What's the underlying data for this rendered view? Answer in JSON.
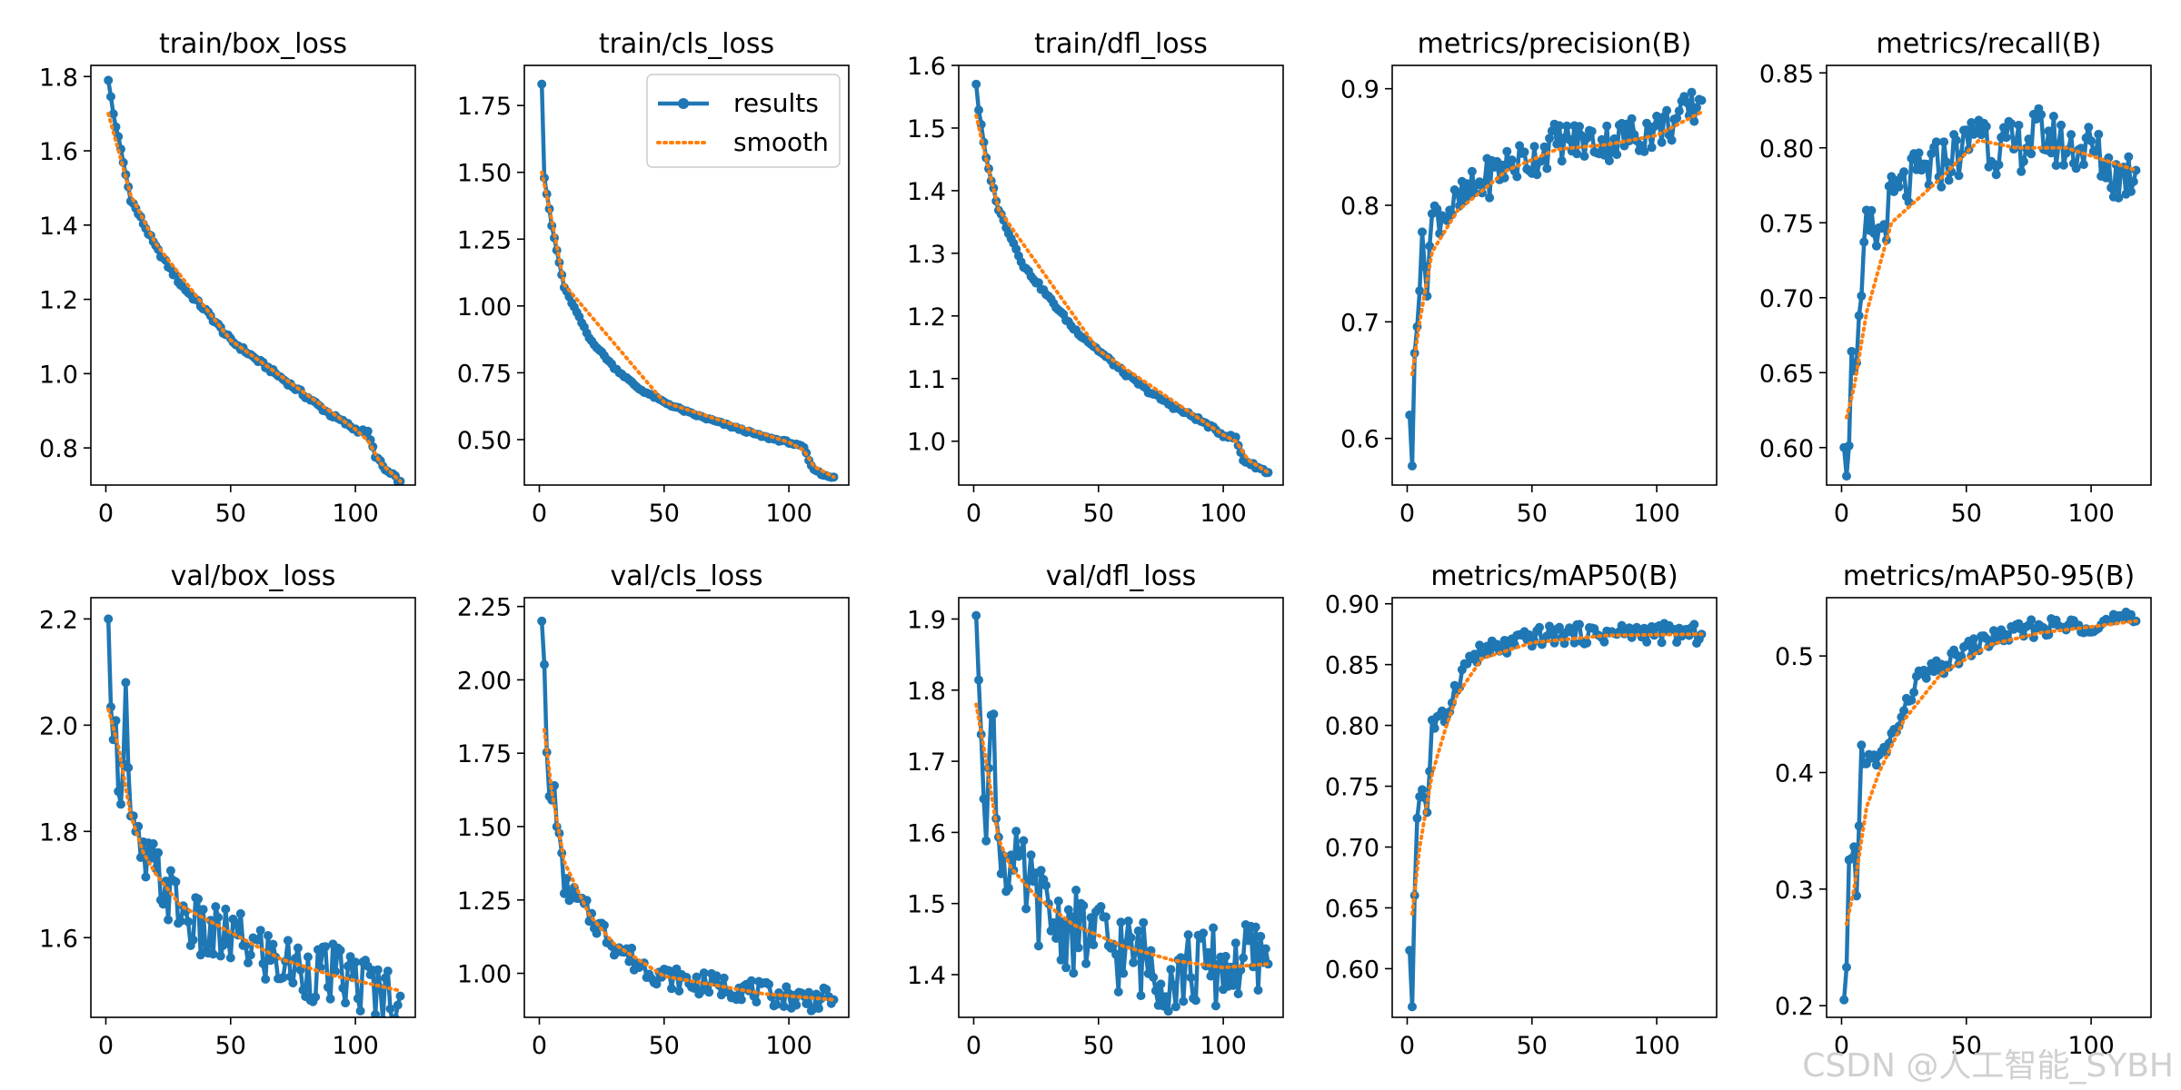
{
  "legend": {
    "results_label": "results",
    "smooth_label": "smooth"
  },
  "colors": {
    "results": "#1f77b4",
    "smooth": "#ff7f0e",
    "axes": "#000000"
  },
  "watermark": "CSDN @人工智能_SYBH",
  "chart_data": [
    {
      "type": "line",
      "title": "train/box_loss",
      "xlabel": "",
      "ylabel": "",
      "grid": false,
      "xlim": [
        -6,
        124
      ],
      "xticks": [
        0,
        50,
        100
      ],
      "ylim": [
        0.7,
        1.83
      ],
      "yticks": [
        0.8,
        1.0,
        1.2,
        1.4,
        1.6,
        1.8
      ],
      "ytick_labels": [
        "0.8",
        "1.0",
        "1.2",
        "1.4",
        "1.6",
        "1.8"
      ],
      "n": 118,
      "points": [
        [
          1,
          1.79
        ],
        [
          3,
          1.7
        ],
        [
          10,
          1.47
        ],
        [
          20,
          1.34
        ],
        [
          30,
          1.24
        ],
        [
          40,
          1.17
        ],
        [
          50,
          1.09
        ],
        [
          60,
          1.04
        ],
        [
          70,
          0.99
        ],
        [
          80,
          0.94
        ],
        [
          90,
          0.89
        ],
        [
          100,
          0.85
        ],
        [
          105,
          0.84
        ],
        [
          108,
          0.78
        ],
        [
          112,
          0.74
        ],
        [
          118,
          0.71
        ]
      ],
      "noise": 0.006,
      "smooth_points": [
        [
          1,
          1.7
        ],
        [
          10,
          1.48
        ],
        [
          20,
          1.35
        ],
        [
          50,
          1.09
        ],
        [
          100,
          0.85
        ],
        [
          105,
          0.82
        ],
        [
          110,
          0.76
        ],
        [
          118,
          0.71
        ]
      ]
    },
    {
      "type": "line",
      "title": "train/cls_loss",
      "xlabel": "",
      "ylabel": "",
      "grid": false,
      "xlim": [
        -6,
        124
      ],
      "xticks": [
        0,
        50,
        100
      ],
      "ylim": [
        0.33,
        1.9
      ],
      "yticks": [
        0.5,
        0.75,
        1.0,
        1.25,
        1.5,
        1.75
      ],
      "ytick_labels": [
        "0.50",
        "0.75",
        "1.00",
        "1.25",
        "1.50",
        "1.75"
      ],
      "n": 118,
      "legend": "top-right",
      "points": [
        [
          1,
          1.83
        ],
        [
          2,
          1.48
        ],
        [
          5,
          1.3
        ],
        [
          10,
          1.07
        ],
        [
          20,
          0.88
        ],
        [
          30,
          0.77
        ],
        [
          40,
          0.69
        ],
        [
          50,
          0.64
        ],
        [
          60,
          0.6
        ],
        [
          70,
          0.57
        ],
        [
          80,
          0.54
        ],
        [
          90,
          0.51
        ],
        [
          100,
          0.49
        ],
        [
          106,
          0.47
        ],
        [
          109,
          0.4
        ],
        [
          113,
          0.37
        ],
        [
          118,
          0.36
        ]
      ],
      "noise": 0.004,
      "smooth_points": [
        [
          1,
          1.5
        ],
        [
          5,
          1.32
        ],
        [
          10,
          1.08
        ],
        [
          50,
          0.64
        ],
        [
          100,
          0.49
        ],
        [
          106,
          0.46
        ],
        [
          110,
          0.4
        ],
        [
          118,
          0.36
        ]
      ]
    },
    {
      "type": "line",
      "title": "train/dfl_loss",
      "xlabel": "",
      "ylabel": "",
      "grid": false,
      "xlim": [
        -6,
        124
      ],
      "xticks": [
        0,
        50,
        100
      ],
      "ylim": [
        0.93,
        1.6
      ],
      "yticks": [
        1.0,
        1.1,
        1.2,
        1.3,
        1.4,
        1.5,
        1.6
      ],
      "ytick_labels": [
        "1.0",
        "1.1",
        "1.2",
        "1.3",
        "1.4",
        "1.5",
        "1.6"
      ],
      "n": 118,
      "points": [
        [
          1,
          1.57
        ],
        [
          2,
          1.53
        ],
        [
          5,
          1.45
        ],
        [
          10,
          1.37
        ],
        [
          20,
          1.28
        ],
        [
          30,
          1.23
        ],
        [
          40,
          1.18
        ],
        [
          50,
          1.145
        ],
        [
          60,
          1.11
        ],
        [
          70,
          1.08
        ],
        [
          80,
          1.055
        ],
        [
          90,
          1.035
        ],
        [
          100,
          1.01
        ],
        [
          105,
          1.005
        ],
        [
          108,
          0.97
        ],
        [
          113,
          0.96
        ],
        [
          118,
          0.95
        ]
      ],
      "noise": 0.003,
      "smooth_points": [
        [
          1,
          1.52
        ],
        [
          5,
          1.45
        ],
        [
          10,
          1.37
        ],
        [
          50,
          1.145
        ],
        [
          100,
          1.01
        ],
        [
          105,
          1.0
        ],
        [
          110,
          0.97
        ],
        [
          118,
          0.95
        ]
      ]
    },
    {
      "type": "line",
      "title": "metrics/precision(B)",
      "xlabel": "",
      "ylabel": "",
      "grid": false,
      "xlim": [
        -6,
        124
      ],
      "xticks": [
        0,
        50,
        100
      ],
      "ylim": [
        0.56,
        0.92
      ],
      "yticks": [
        0.6,
        0.7,
        0.8,
        0.9
      ],
      "ytick_labels": [
        "0.6",
        "0.7",
        "0.8",
        "0.9"
      ],
      "n": 118,
      "points": [
        [
          1,
          0.62
        ],
        [
          2,
          0.575
        ],
        [
          3,
          0.69
        ],
        [
          4,
          0.71
        ],
        [
          6,
          0.76
        ],
        [
          8,
          0.74
        ],
        [
          10,
          0.79
        ],
        [
          20,
          0.8
        ],
        [
          30,
          0.82
        ],
        [
          40,
          0.835
        ],
        [
          50,
          0.84
        ],
        [
          60,
          0.855
        ],
        [
          70,
          0.855
        ],
        [
          80,
          0.855
        ],
        [
          90,
          0.86
        ],
        [
          100,
          0.865
        ],
        [
          110,
          0.875
        ],
        [
          118,
          0.89
        ]
      ],
      "noise": 0.018,
      "smooth_points": [
        [
          2,
          0.655
        ],
        [
          5,
          0.7
        ],
        [
          10,
          0.76
        ],
        [
          20,
          0.795
        ],
        [
          40,
          0.83
        ],
        [
          60,
          0.848
        ],
        [
          80,
          0.852
        ],
        [
          100,
          0.86
        ],
        [
          118,
          0.88
        ]
      ]
    },
    {
      "type": "line",
      "title": "metrics/recall(B)",
      "xlabel": "",
      "ylabel": "",
      "grid": false,
      "xlim": [
        -6,
        124
      ],
      "xticks": [
        0,
        50,
        100
      ],
      "ylim": [
        0.575,
        0.855
      ],
      "yticks": [
        0.6,
        0.65,
        0.7,
        0.75,
        0.8,
        0.85
      ],
      "ytick_labels": [
        "0.60",
        "0.65",
        "0.70",
        "0.75",
        "0.80",
        "0.85"
      ],
      "n": 118,
      "points": [
        [
          1,
          0.6
        ],
        [
          3,
          0.59
        ],
        [
          4,
          0.675
        ],
        [
          6,
          0.65
        ],
        [
          8,
          0.695
        ],
        [
          10,
          0.745
        ],
        [
          15,
          0.74
        ],
        [
          20,
          0.765
        ],
        [
          30,
          0.78
        ],
        [
          40,
          0.79
        ],
        [
          50,
          0.8
        ],
        [
          55,
          0.82
        ],
        [
          60,
          0.8
        ],
        [
          70,
          0.8
        ],
        [
          80,
          0.81
        ],
        [
          90,
          0.8
        ],
        [
          100,
          0.8
        ],
        [
          110,
          0.78
        ],
        [
          118,
          0.785
        ]
      ],
      "noise": 0.018,
      "smooth_points": [
        [
          2,
          0.62
        ],
        [
          5,
          0.64
        ],
        [
          10,
          0.69
        ],
        [
          20,
          0.75
        ],
        [
          40,
          0.78
        ],
        [
          55,
          0.805
        ],
        [
          70,
          0.8
        ],
        [
          90,
          0.8
        ],
        [
          118,
          0.785
        ]
      ]
    },
    {
      "type": "line",
      "title": "val/box_loss",
      "xlabel": "",
      "ylabel": "",
      "grid": false,
      "xlim": [
        -6,
        124
      ],
      "xticks": [
        0,
        50,
        100
      ],
      "ylim": [
        1.45,
        2.24
      ],
      "yticks": [
        1.6,
        1.8,
        2.0,
        2.2
      ],
      "ytick_labels": [
        "1.6",
        "1.8",
        "2.0",
        "2.2"
      ],
      "n": 118,
      "points": [
        [
          1,
          2.2
        ],
        [
          2,
          2.09
        ],
        [
          4,
          1.97
        ],
        [
          6,
          1.88
        ],
        [
          8,
          2.06
        ],
        [
          10,
          1.8
        ],
        [
          15,
          1.74
        ],
        [
          20,
          1.72
        ],
        [
          30,
          1.65
        ],
        [
          40,
          1.6
        ],
        [
          50,
          1.6
        ],
        [
          60,
          1.58
        ],
        [
          70,
          1.55
        ],
        [
          80,
          1.54
        ],
        [
          90,
          1.53
        ],
        [
          100,
          1.52
        ],
        [
          110,
          1.5
        ],
        [
          118,
          1.49
        ]
      ],
      "noise": 0.06,
      "smooth_points": [
        [
          1,
          2.03
        ],
        [
          5,
          1.96
        ],
        [
          10,
          1.83
        ],
        [
          15,
          1.76
        ],
        [
          20,
          1.72
        ],
        [
          30,
          1.66
        ],
        [
          50,
          1.61
        ],
        [
          70,
          1.56
        ],
        [
          90,
          1.53
        ],
        [
          118,
          1.5
        ]
      ]
    },
    {
      "type": "line",
      "title": "val/cls_loss",
      "xlabel": "",
      "ylabel": "",
      "grid": false,
      "xlim": [
        -6,
        124
      ],
      "xticks": [
        0,
        50,
        100
      ],
      "ylim": [
        0.85,
        2.28
      ],
      "yticks": [
        1.0,
        1.25,
        1.5,
        1.75,
        2.0,
        2.25
      ],
      "ytick_labels": [
        "1.00",
        "1.25",
        "1.50",
        "1.75",
        "2.00",
        "2.25"
      ],
      "n": 118,
      "points": [
        [
          1,
          2.2
        ],
        [
          2,
          2.02
        ],
        [
          3,
          1.75
        ],
        [
          4,
          1.58
        ],
        [
          6,
          1.62
        ],
        [
          8,
          1.45
        ],
        [
          10,
          1.3
        ],
        [
          20,
          1.2
        ],
        [
          30,
          1.1
        ],
        [
          40,
          1.03
        ],
        [
          50,
          0.99
        ],
        [
          60,
          0.97
        ],
        [
          70,
          0.96
        ],
        [
          80,
          0.95
        ],
        [
          90,
          0.93
        ],
        [
          100,
          0.92
        ],
        [
          110,
          0.91
        ],
        [
          118,
          0.91
        ]
      ],
      "noise": 0.04,
      "smooth_points": [
        [
          2,
          1.83
        ],
        [
          5,
          1.62
        ],
        [
          10,
          1.38
        ],
        [
          20,
          1.2
        ],
        [
          30,
          1.1
        ],
        [
          50,
          0.99
        ],
        [
          70,
          0.96
        ],
        [
          90,
          0.93
        ],
        [
          118,
          0.91
        ]
      ]
    },
    {
      "type": "line",
      "title": "val/dfl_loss",
      "xlabel": "",
      "ylabel": "",
      "grid": false,
      "xlim": [
        -6,
        124
      ],
      "xticks": [
        0,
        50,
        100
      ],
      "ylim": [
        1.34,
        1.93
      ],
      "yticks": [
        1.4,
        1.5,
        1.6,
        1.7,
        1.8,
        1.9
      ],
      "ytick_labels": [
        "1.4",
        "1.5",
        "1.6",
        "1.7",
        "1.8",
        "1.9"
      ],
      "n": 118,
      "points": [
        [
          1,
          1.905
        ],
        [
          2,
          1.85
        ],
        [
          3,
          1.77
        ],
        [
          5,
          1.64
        ],
        [
          8,
          1.76
        ],
        [
          10,
          1.58
        ],
        [
          15,
          1.55
        ],
        [
          20,
          1.53
        ],
        [
          30,
          1.48
        ],
        [
          40,
          1.46
        ],
        [
          50,
          1.45
        ],
        [
          60,
          1.43
        ],
        [
          70,
          1.42
        ],
        [
          80,
          1.4
        ],
        [
          90,
          1.41
        ],
        [
          100,
          1.41
        ],
        [
          110,
          1.42
        ],
        [
          118,
          1.415
        ]
      ],
      "noise": 0.06,
      "smooth_points": [
        [
          1,
          1.78
        ],
        [
          5,
          1.7
        ],
        [
          10,
          1.59
        ],
        [
          15,
          1.55
        ],
        [
          25,
          1.51
        ],
        [
          40,
          1.47
        ],
        [
          60,
          1.44
        ],
        [
          80,
          1.42
        ],
        [
          100,
          1.41
        ],
        [
          118,
          1.415
        ]
      ]
    },
    {
      "type": "line",
      "title": "metrics/mAP50(B)",
      "xlabel": "",
      "ylabel": "",
      "grid": false,
      "xlim": [
        -6,
        124
      ],
      "xticks": [
        0,
        50,
        100
      ],
      "ylim": [
        0.56,
        0.905
      ],
      "yticks": [
        0.6,
        0.65,
        0.7,
        0.75,
        0.8,
        0.85,
        0.9
      ],
      "ytick_labels": [
        "0.60",
        "0.65",
        "0.70",
        "0.75",
        "0.80",
        "0.85",
        "0.90"
      ],
      "n": 118,
      "points": [
        [
          1,
          0.615
        ],
        [
          2,
          0.57
        ],
        [
          3,
          0.66
        ],
        [
          4,
          0.73
        ],
        [
          6,
          0.75
        ],
        [
          8,
          0.73
        ],
        [
          10,
          0.8
        ],
        [
          15,
          0.805
        ],
        [
          20,
          0.835
        ],
        [
          25,
          0.855
        ],
        [
          30,
          0.86
        ],
        [
          40,
          0.865
        ],
        [
          50,
          0.872
        ],
        [
          60,
          0.875
        ],
        [
          70,
          0.875
        ],
        [
          80,
          0.875
        ],
        [
          90,
          0.877
        ],
        [
          100,
          0.876
        ],
        [
          118,
          0.875
        ]
      ],
      "noise": 0.008,
      "smooth_points": [
        [
          2,
          0.645
        ],
        [
          5,
          0.7
        ],
        [
          10,
          0.76
        ],
        [
          15,
          0.795
        ],
        [
          20,
          0.825
        ],
        [
          30,
          0.855
        ],
        [
          50,
          0.868
        ],
        [
          80,
          0.874
        ],
        [
          118,
          0.875
        ]
      ]
    },
    {
      "type": "line",
      "title": "metrics/mAP50-95(B)",
      "xlabel": "",
      "ylabel": "",
      "grid": false,
      "xlim": [
        -6,
        124
      ],
      "xticks": [
        0,
        50,
        100
      ],
      "ylim": [
        0.19,
        0.55
      ],
      "yticks": [
        0.2,
        0.3,
        0.4,
        0.5
      ],
      "ytick_labels": [
        "0.2",
        "0.3",
        "0.4",
        "0.5"
      ],
      "n": 118,
      "points": [
        [
          1,
          0.205
        ],
        [
          2,
          0.225
        ],
        [
          3,
          0.32
        ],
        [
          5,
          0.34
        ],
        [
          6,
          0.29
        ],
        [
          8,
          0.42
        ],
        [
          10,
          0.41
        ],
        [
          15,
          0.41
        ],
        [
          20,
          0.43
        ],
        [
          25,
          0.45
        ],
        [
          30,
          0.48
        ],
        [
          40,
          0.49
        ],
        [
          50,
          0.505
        ],
        [
          60,
          0.515
        ],
        [
          70,
          0.52
        ],
        [
          80,
          0.525
        ],
        [
          90,
          0.525
        ],
        [
          100,
          0.528
        ],
        [
          110,
          0.53
        ],
        [
          118,
          0.53
        ]
      ],
      "noise": 0.008,
      "smooth_points": [
        [
          2,
          0.27
        ],
        [
          5,
          0.3
        ],
        [
          10,
          0.37
        ],
        [
          15,
          0.4
        ],
        [
          25,
          0.445
        ],
        [
          40,
          0.485
        ],
        [
          60,
          0.51
        ],
        [
          80,
          0.52
        ],
        [
          100,
          0.525
        ],
        [
          118,
          0.53
        ]
      ]
    }
  ]
}
